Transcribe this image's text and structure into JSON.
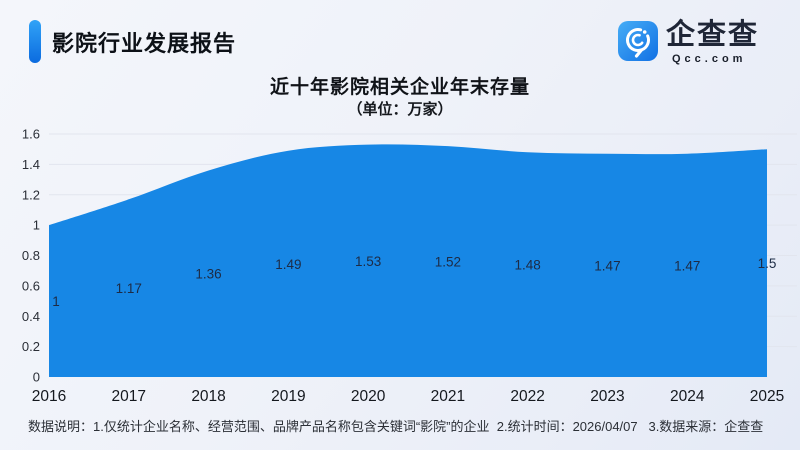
{
  "header": {
    "report_title": "影院行业发展报告",
    "logo": {
      "brand_name": "企查查",
      "brand_domain": "Qcc.com",
      "icon": "qcc-magnifier-icon",
      "brand_blue": "#1787e5"
    }
  },
  "chart_data": {
    "type": "area",
    "title": "近十年影院相关企业年末存量",
    "subtitle": "（单位：万家）",
    "categories": [
      "2016",
      "2017",
      "2018",
      "2019",
      "2020",
      "2021",
      "2022",
      "2023",
      "2024",
      "2025"
    ],
    "values": [
      1,
      1.17,
      1.36,
      1.49,
      1.53,
      1.52,
      1.48,
      1.47,
      1.47,
      1.5
    ],
    "point_labels": [
      "1",
      "1.17",
      "1.36",
      "1.49",
      "1.53",
      "1.52",
      "1.48",
      "1.47",
      "1.47",
      "1.5"
    ],
    "xlabel": "",
    "ylabel": "",
    "ylim": [
      0,
      1.6
    ],
    "ytick_step": 0.2,
    "yticks": [
      "0",
      "0.2",
      "0.4",
      "0.6",
      "0.8",
      "1",
      "1.2",
      "1.4",
      "1.6"
    ],
    "grid": true,
    "legend": "none",
    "smooth": true,
    "area_color": "#1787e5",
    "gridline_color": "#e2e5ee",
    "label_color": "#1d2b45",
    "xtick_color": "#14181e",
    "ytick_color": "#2a2e36"
  },
  "footer": {
    "note": "数据说明：1.仅统计企业名称、经营范围、品牌产品名称包含关键词“影院”的企业  2.统计时间：2026/04/07   3.数据来源：企查查"
  }
}
